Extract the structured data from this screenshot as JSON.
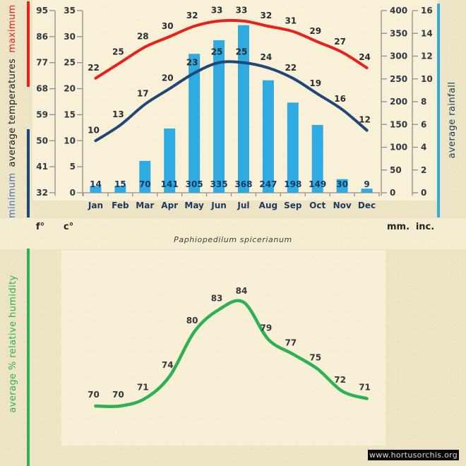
{
  "page": {
    "species_label": "Paphiopedilum spicerianum",
    "watermark": "www.hortusorchis.org"
  },
  "axis_titles": {
    "left_min": "minimum",
    "left_mid": "average temperatures",
    "left_max": "maximum",
    "right": "average rainfall",
    "humidity": "average %  relative humidity"
  },
  "unit_labels": {
    "fahrenheit": "f°",
    "celsius": "c°",
    "millimeters": "mm.",
    "inches": "inc."
  },
  "colors": {
    "max_line": "#e8211a",
    "min_line": "#1f4878",
    "rain_bar": "#2fabe1",
    "humidity_line": "#2db152",
    "min_title_text": "#4472c4",
    "mid_title_text": "#1b1b1b",
    "axis_line": "#8e8e8e",
    "tick_text": "#2e3744",
    "temp_label_text": "#2b2b30",
    "rain_label_text": "#123a63",
    "month_text": "#1c3a5e",
    "humidity_label_text": "#36363a",
    "watermark_bg": "#0b0b0b",
    "watermark_text": "#d4d4d4"
  },
  "chart_data": [
    {
      "type": "composite",
      "title": "monthly climate: average temperatures and rainfall",
      "categories": [
        "Jan",
        "Feb",
        "Mar",
        "Apr",
        "May",
        "Jun",
        "Jul",
        "Aug",
        "Sep",
        "Oct",
        "Nov",
        "Dec"
      ],
      "series": [
        {
          "name": "maximum temperature",
          "type": "line",
          "unit": "°C",
          "values": [
            22,
            25,
            28,
            30,
            32,
            33,
            33,
            32,
            31,
            29,
            27,
            24
          ]
        },
        {
          "name": "minimum temperature",
          "type": "line",
          "unit": "°C",
          "values": [
            10,
            13,
            17,
            20,
            23,
            25,
            25,
            24,
            22,
            19,
            16,
            12
          ]
        },
        {
          "name": "average rainfall",
          "type": "bar",
          "unit": "mm",
          "values": [
            14,
            15,
            70,
            141,
            305,
            335,
            368,
            247,
            198,
            149,
            30,
            9
          ]
        }
      ],
      "axes": {
        "celsius": {
          "ticks": [
            35,
            30,
            25,
            20,
            15,
            10,
            5,
            0
          ],
          "range": [
            0,
            35
          ]
        },
        "fahrenheit": {
          "ticks": [
            95,
            86,
            77,
            68,
            59,
            50,
            41,
            32
          ],
          "range": [
            32,
            95
          ]
        },
        "mm": {
          "ticks": [
            400,
            350,
            300,
            250,
            200,
            150,
            100,
            50,
            0
          ],
          "range": [
            0,
            400
          ]
        },
        "inches": {
          "ticks": [
            16,
            14,
            12,
            10,
            8,
            6,
            4,
            2,
            0
          ],
          "range": [
            0,
            16
          ]
        }
      },
      "grid": false,
      "legend": "rotated axis titles on left and right"
    },
    {
      "type": "line",
      "title": "average % relative humidity",
      "unit": "%",
      "categories": [
        "Jan",
        "Feb",
        "Mar",
        "Apr",
        "May",
        "Jun",
        "Jul",
        "Aug",
        "Sep",
        "Oct",
        "Nov",
        "Dec"
      ],
      "values": [
        70,
        70,
        71,
        74,
        80,
        83,
        84,
        79,
        77,
        75,
        72,
        71
      ],
      "grid": false
    }
  ]
}
